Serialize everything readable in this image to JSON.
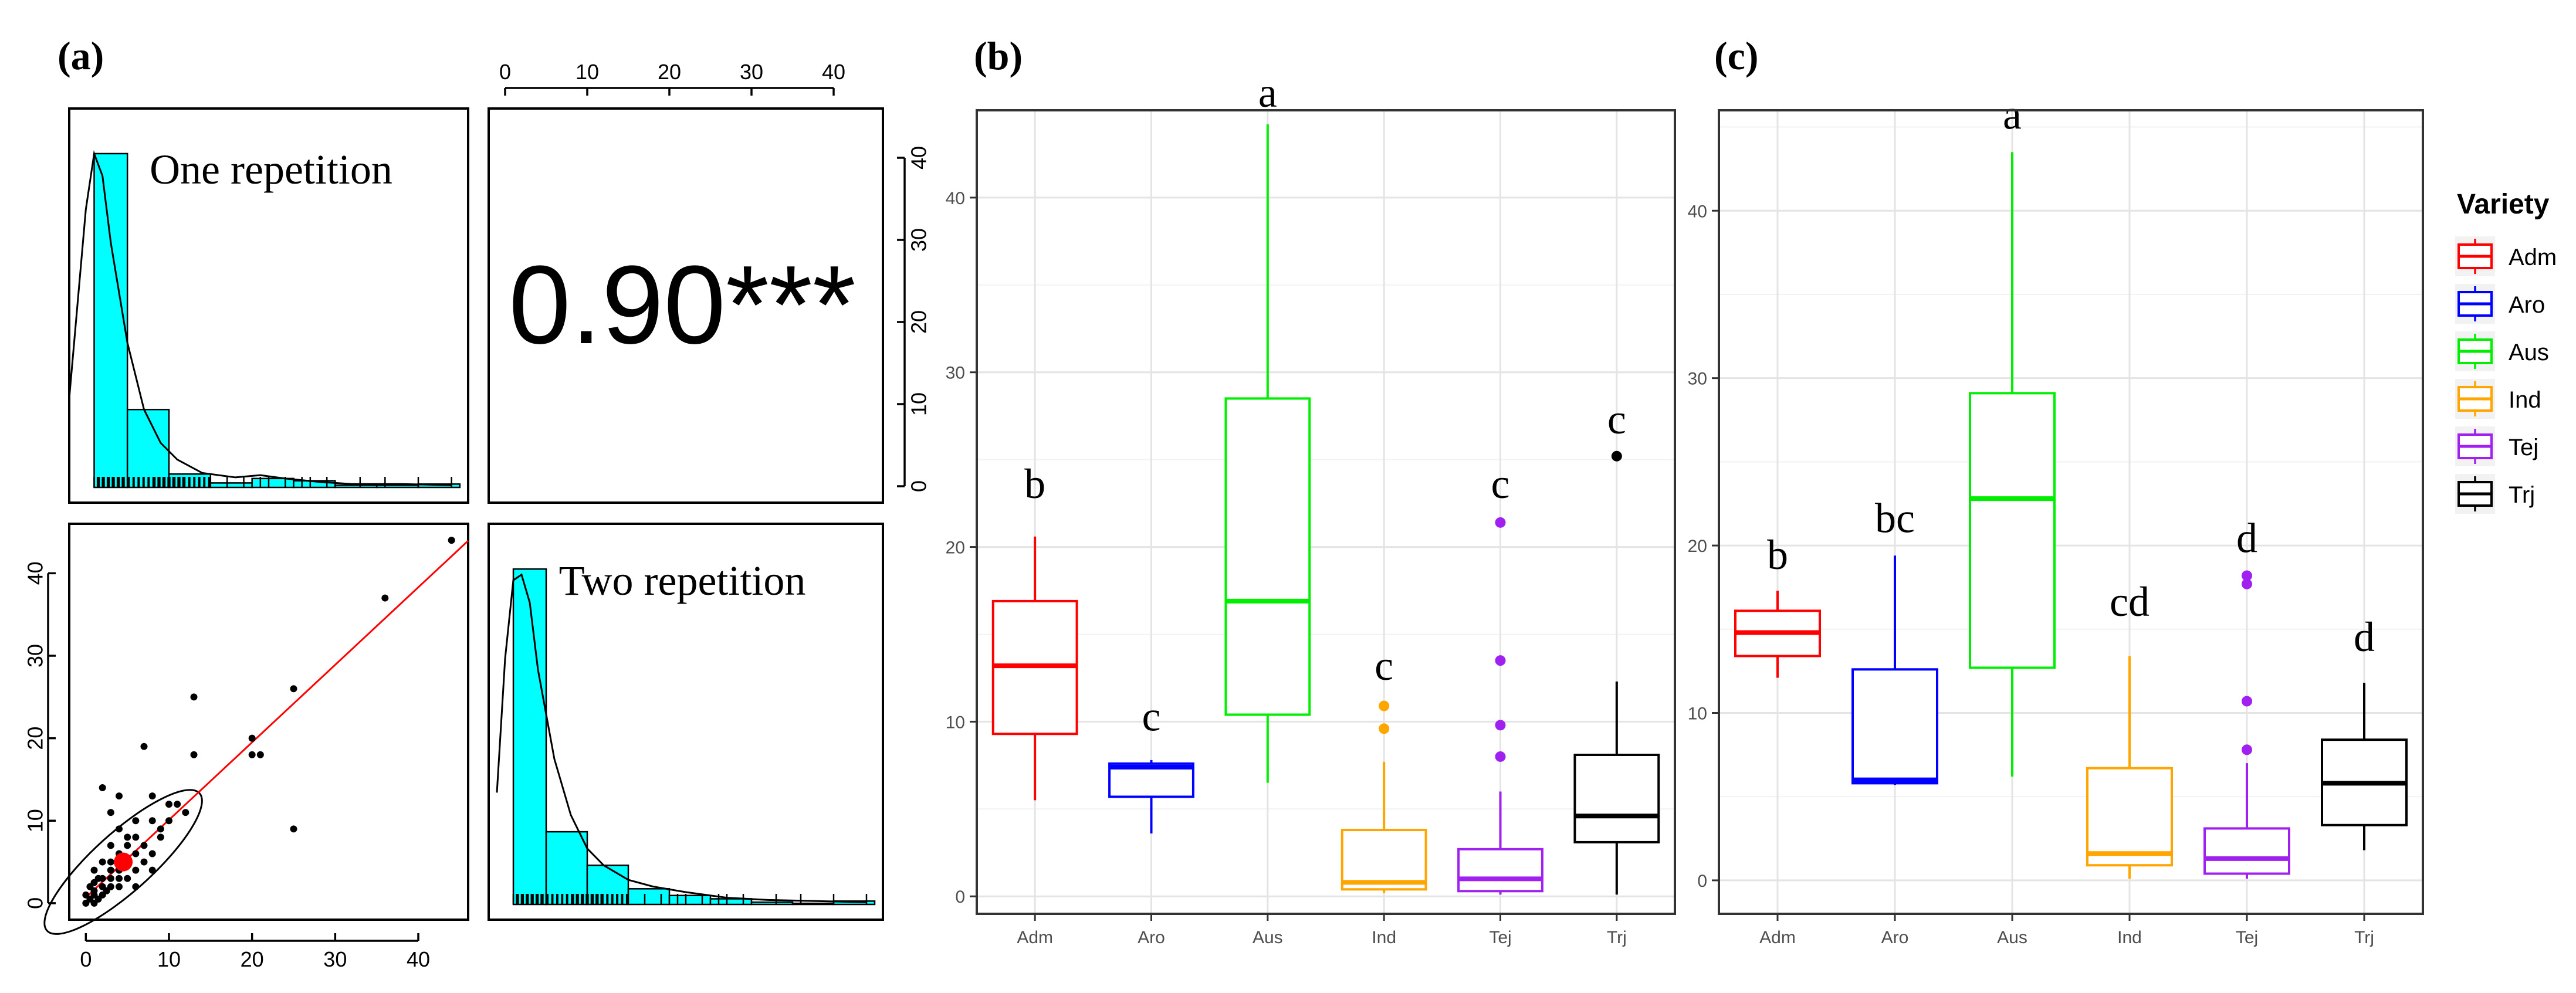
{
  "panel_labels": {
    "a": "(a)",
    "b": "(b)",
    "c": "(c)"
  },
  "chart_data": [
    {
      "panel": "(a)",
      "type": "scatter",
      "title": "",
      "cells": {
        "top_left": {
          "kind": "histogram",
          "label": "One repetition",
          "bins": [
            [
              1,
              5,
              30
            ],
            [
              5,
              10,
              7
            ],
            [
              10,
              15,
              1.2
            ],
            [
              15,
              20,
              0.4
            ],
            [
              20,
              25,
              0.8
            ],
            [
              25,
              30,
              0.6
            ],
            [
              30,
              35,
              0.2
            ],
            [
              35,
              40,
              0.2
            ],
            [
              40,
              45,
              0.3
            ]
          ],
          "density_curve": [
            [
              -2,
              8
            ],
            [
              0,
              25
            ],
            [
              1,
              30
            ],
            [
              2,
              28
            ],
            [
              3,
              22
            ],
            [
              5,
              13
            ],
            [
              7,
              7
            ],
            [
              9,
              4
            ],
            [
              11,
              2.5
            ],
            [
              14,
              1.3
            ],
            [
              18,
              0.9
            ],
            [
              21,
              1.1
            ],
            [
              24,
              0.8
            ],
            [
              28,
              0.5
            ],
            [
              32,
              0.3
            ],
            [
              38,
              0.3
            ],
            [
              44,
              0.2
            ]
          ],
          "ylim": [
            0,
            33
          ]
        },
        "top_right": {
          "kind": "correlation",
          "value": "0.90***"
        },
        "bottom_right": {
          "kind": "histogram",
          "label": "Two repetition",
          "bins": [
            [
              1,
              5,
              30
            ],
            [
              5,
              10,
              6.5
            ],
            [
              10,
              15,
              3.5
            ],
            [
              15,
              20,
              1.4
            ],
            [
              20,
              25,
              0.8
            ],
            [
              25,
              30,
              0.5
            ],
            [
              30,
              35,
              0.2
            ],
            [
              35,
              40,
              0.1
            ],
            [
              40,
              45,
              0.3
            ]
          ],
          "density_curve": [
            [
              -1,
              10
            ],
            [
              0,
              22
            ],
            [
              1,
              29
            ],
            [
              2,
              29.5
            ],
            [
              3,
              27
            ],
            [
              4,
              21
            ],
            [
              6,
              13
            ],
            [
              8,
              8
            ],
            [
              10,
              5
            ],
            [
              12,
              3.5
            ],
            [
              15,
              2.2
            ],
            [
              18,
              1.6
            ],
            [
              22,
              1.1
            ],
            [
              27,
              0.6
            ],
            [
              32,
              0.4
            ],
            [
              38,
              0.3
            ],
            [
              44,
              0.2
            ]
          ],
          "ylim": [
            0,
            33
          ]
        },
        "bottom_left": {
          "kind": "scatter",
          "points": [
            [
              0,
              0
            ],
            [
              0,
              1
            ],
            [
              0.5,
              0.5
            ],
            [
              1,
              0
            ],
            [
              1,
              1
            ],
            [
              1,
              1.5
            ],
            [
              1.5,
              0.5
            ],
            [
              2,
              1
            ],
            [
              0.5,
              2
            ],
            [
              1,
              2.5
            ],
            [
              2,
              2
            ],
            [
              2,
              3
            ],
            [
              3,
              2
            ],
            [
              3,
              3
            ],
            [
              2.5,
              1.5
            ],
            [
              1.5,
              3
            ],
            [
              4,
              2
            ],
            [
              4,
              3
            ],
            [
              3,
              4
            ],
            [
              5,
              3
            ],
            [
              3,
              5
            ],
            [
              4,
              4
            ],
            [
              6,
              4
            ],
            [
              5,
              5
            ],
            [
              4,
              6
            ],
            [
              6,
              6
            ],
            [
              7,
              5
            ],
            [
              5,
              7
            ],
            [
              8,
              6
            ],
            [
              6,
              8
            ],
            [
              7,
              7
            ],
            [
              5,
              8
            ],
            [
              9,
              8
            ],
            [
              8,
              10
            ],
            [
              10,
              10
            ],
            [
              11,
              12
            ],
            [
              12,
              11
            ],
            [
              10,
              12
            ],
            [
              3,
              11
            ],
            [
              6,
              10
            ],
            [
              2,
              14
            ],
            [
              4,
              13
            ],
            [
              8,
              13
            ],
            [
              7,
              19
            ],
            [
              13,
              25
            ],
            [
              13,
              18
            ],
            [
              20,
              20
            ],
            [
              20,
              18
            ],
            [
              21,
              18
            ],
            [
              25,
              9
            ],
            [
              25,
              26
            ],
            [
              36,
              37
            ],
            [
              44,
              44
            ],
            [
              1,
              4
            ],
            [
              2,
              5
            ],
            [
              3,
              7
            ],
            [
              4,
              9
            ],
            [
              6,
              2
            ],
            [
              8,
              4
            ],
            [
              9,
              9
            ]
          ],
          "mean_point": [
            4.5,
            5
          ],
          "regression_line": [
            [
              0,
              0.7
            ],
            [
              45,
              43
            ]
          ],
          "xlim": [
            -2,
            46
          ],
          "ylim": [
            -2,
            46
          ]
        }
      },
      "top_axis_ticks": [
        "0",
        "10",
        "20",
        "30",
        "40"
      ],
      "right_axis_ticks": [
        "0",
        "10",
        "20",
        "30",
        "40"
      ],
      "bottom_axis_ticks": [
        "0",
        "10",
        "20",
        "30",
        "40"
      ],
      "left_axis_ticks": [
        "0",
        "10",
        "20",
        "30",
        "40"
      ]
    },
    {
      "panel": "(b)",
      "type": "box",
      "title": "",
      "xlabel": "",
      "ylabel": "",
      "categories": [
        "Adm",
        "Aro",
        "Aus",
        "Ind",
        "Tej",
        "Trj"
      ],
      "ylim": [
        -1,
        45
      ],
      "y_ticks": [
        "0",
        "10",
        "20",
        "30",
        "40"
      ],
      "boxes": [
        {
          "name": "Adm",
          "min": 5.5,
          "q1": 9.3,
          "median": 13.2,
          "q3": 16.9,
          "max": 20.6,
          "outliers": [],
          "letter": "b",
          "letter_y": 22.8
        },
        {
          "name": "Aro",
          "min": 3.6,
          "q1": 5.7,
          "median": 7.4,
          "q3": 7.6,
          "max": 7.8,
          "outliers": [],
          "letter": "c",
          "letter_y": 9.5
        },
        {
          "name": "Aus",
          "min": 6.5,
          "q1": 10.4,
          "median": 16.9,
          "q3": 28.5,
          "max": 44.2,
          "outliers": [],
          "letter": "a",
          "letter_y": 45.2
        },
        {
          "name": "Ind",
          "min": 0.2,
          "q1": 0.4,
          "median": 0.8,
          "q3": 3.8,
          "max": 7.7,
          "outliers": [
            9.6,
            10.9
          ],
          "letter": "c",
          "letter_y": 12.4
        },
        {
          "name": "Tej",
          "min": 0.1,
          "q1": 0.3,
          "median": 1.0,
          "q3": 2.7,
          "max": 6.0,
          "outliers": [
            8.0,
            9.8,
            13.5,
            21.4
          ],
          "letter": "c",
          "letter_y": 22.8
        },
        {
          "name": "Trj",
          "min": 0.1,
          "q1": 3.1,
          "median": 4.6,
          "q3": 8.1,
          "max": 12.3,
          "outliers": [
            25.2
          ],
          "letter": "c",
          "letter_y": 26.5
        }
      ]
    },
    {
      "panel": "(c)",
      "type": "box",
      "title": "",
      "xlabel": "",
      "ylabel": "",
      "categories": [
        "Adm",
        "Aro",
        "Aus",
        "Ind",
        "Tej",
        "Trj"
      ],
      "ylim": [
        -2,
        46
      ],
      "y_ticks": [
        "0",
        "10",
        "20",
        "30",
        "40"
      ],
      "legend": {
        "title": "Variety",
        "placement": "right",
        "entries": [
          {
            "label": "Adm",
            "color": "#ff0000"
          },
          {
            "label": "Aro",
            "color": "#0000ff"
          },
          {
            "label": "Aus",
            "color": "#00ee00"
          },
          {
            "label": "Ind",
            "color": "#ffa500"
          },
          {
            "label": "Tej",
            "color": "#a020f0"
          },
          {
            "label": "Trj",
            "color": "#000000"
          }
        ]
      },
      "boxes": [
        {
          "name": "Adm",
          "min": 12.1,
          "q1": 13.4,
          "median": 14.8,
          "q3": 16.1,
          "max": 17.3,
          "outliers": [],
          "letter": "b",
          "letter_y": 18.6
        },
        {
          "name": "Aro",
          "min": 5.7,
          "q1": 5.8,
          "median": 6.0,
          "q3": 12.6,
          "max": 19.4,
          "outliers": [],
          "letter": "bc",
          "letter_y": 20.8
        },
        {
          "name": "Aus",
          "min": 6.2,
          "q1": 12.7,
          "median": 22.8,
          "q3": 29.1,
          "max": 43.5,
          "outliers": [],
          "letter": "a",
          "letter_y": 44.9
        },
        {
          "name": "Ind",
          "min": 0.1,
          "q1": 0.9,
          "median": 1.6,
          "q3": 6.7,
          "max": 13.4,
          "outliers": [],
          "letter": "cd",
          "letter_y": 15.8
        },
        {
          "name": "Tej",
          "min": 0.1,
          "q1": 0.4,
          "median": 1.3,
          "q3": 3.1,
          "max": 7.0,
          "outliers": [
            7.8,
            10.7,
            17.7,
            18.2
          ],
          "letter": "d",
          "letter_y": 19.6
        },
        {
          "name": "Trj",
          "min": 1.8,
          "q1": 3.3,
          "median": 5.8,
          "q3": 8.4,
          "max": 11.8,
          "outliers": [],
          "letter": "d",
          "letter_y": 13.7
        }
      ]
    }
  ],
  "colors": {
    "Adm": "#ff0000",
    "Aro": "#0000ff",
    "Aus": "#00ee00",
    "Ind": "#ffa500",
    "Tej": "#a020f0",
    "Trj": "#000000",
    "hist_fill": "#00ffff",
    "regression": "#ff0000",
    "mean_point": "#ff0000"
  }
}
